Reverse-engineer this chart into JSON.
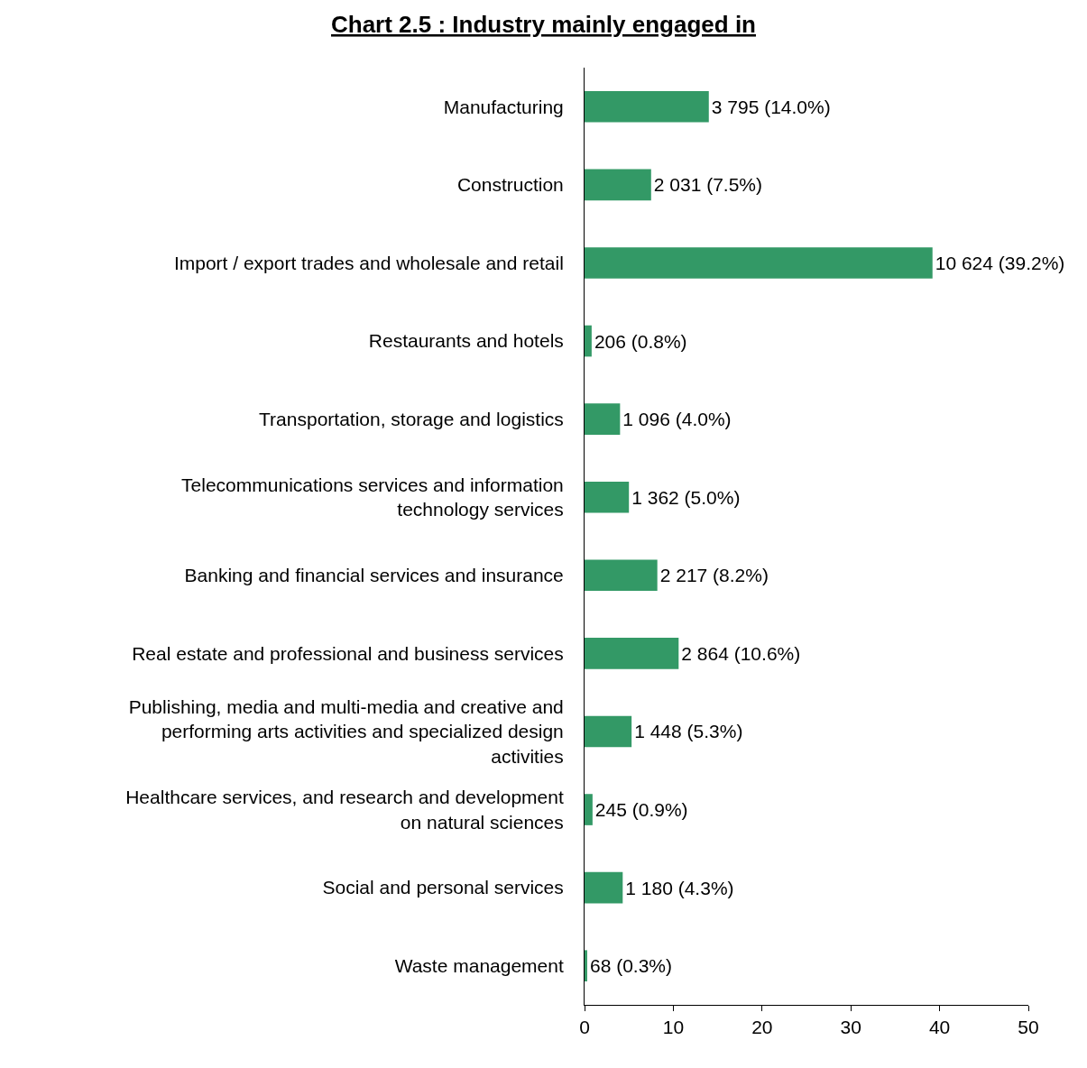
{
  "chart_data": {
    "type": "bar",
    "orientation": "horizontal",
    "title": "Chart 2.5 : Industry mainly engaged in",
    "categories": [
      "Manufacturing",
      "Construction",
      "Import / export trades and wholesale and retail",
      "Restaurants and hotels",
      "Transportation, storage and logistics",
      "Telecommunications services and information technology services",
      "Banking and financial services and insurance",
      "Real estate and professional and business services",
      "Publishing, media and multi-media and  creative and performing arts activities and specialized design activities",
      "Healthcare services, and research and development on natural sciences",
      "Social and personal services",
      "Waste management"
    ],
    "values": [
      14.0,
      7.5,
      39.2,
      0.8,
      4.0,
      5.0,
      8.2,
      10.6,
      5.3,
      0.9,
      4.3,
      0.3
    ],
    "value_labels": [
      "3 795 (14.0%)",
      "2 031 (7.5%)",
      "10 624 (39.2%)",
      "206 (0.8%)",
      "1 096 (4.0%)",
      "1 362 (5.0%)",
      "2 217 (8.2%)",
      "2 864 (10.6%)",
      "1 448 (5.3%)",
      "245 (0.9%)",
      "1 180 (4.3%)",
      "68 (0.3%)"
    ],
    "color": "#339966",
    "xlim": [
      0,
      50
    ],
    "xticks": [
      0,
      10,
      20,
      30,
      40,
      50
    ]
  }
}
